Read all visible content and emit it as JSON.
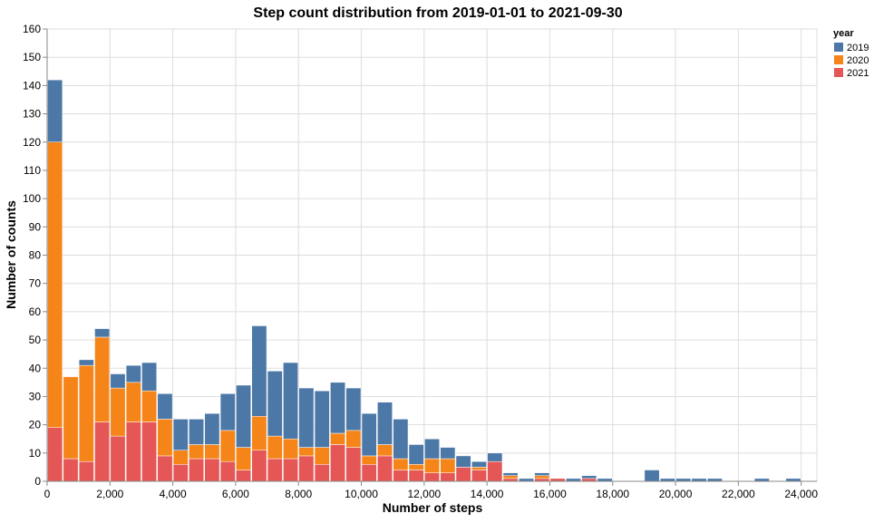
{
  "chart_data": {
    "type": "bar",
    "stacked": true,
    "title": "Step count distribution from 2019-01-01 to 2021-09-30",
    "xlabel": "Number of steps",
    "ylabel": "Number of counts",
    "xlim": [
      0,
      24500
    ],
    "ylim": [
      0,
      160
    ],
    "bin_width": 500,
    "x": [
      0,
      500,
      1000,
      1500,
      2000,
      2500,
      3000,
      3500,
      4000,
      4500,
      5000,
      5500,
      6000,
      6500,
      7000,
      7500,
      8000,
      8500,
      9000,
      9500,
      10000,
      10500,
      11000,
      11500,
      12000,
      12500,
      13000,
      13500,
      14000,
      14500,
      15000,
      15500,
      16000,
      16500,
      17000,
      17500,
      18000,
      18500,
      19000,
      19500,
      20000,
      20500,
      21000,
      21500,
      22000,
      22500,
      23000,
      23500,
      24000
    ],
    "x_ticks": [
      0,
      2000,
      4000,
      6000,
      8000,
      10000,
      12000,
      14000,
      16000,
      18000,
      20000,
      22000,
      24000
    ],
    "x_tick_labels": [
      "0",
      "2,000",
      "4,000",
      "6,000",
      "8,000",
      "10,000",
      "12,000",
      "14,000",
      "16,000",
      "18,000",
      "20,000",
      "22,000",
      "24,000"
    ],
    "y_ticks": [
      0,
      10,
      20,
      30,
      40,
      50,
      60,
      70,
      80,
      90,
      100,
      110,
      120,
      130,
      140,
      150,
      160
    ],
    "y_tick_labels": [
      "0",
      "10",
      "20",
      "30",
      "40",
      "50",
      "60",
      "70",
      "80",
      "90",
      "100",
      "110",
      "120",
      "130",
      "140",
      "150",
      "160"
    ],
    "grid": true,
    "legend_title": "year",
    "legend_position": "right",
    "series": [
      {
        "name": "2021",
        "color": "#e45756",
        "values": [
          19,
          8,
          7,
          21,
          16,
          21,
          21,
          9,
          6,
          8,
          8,
          7,
          4,
          11,
          8,
          8,
          9,
          6,
          13,
          12,
          6,
          9,
          4,
          4,
          3,
          3,
          5,
          4,
          7,
          1,
          0,
          1,
          1,
          0,
          1,
          0,
          0,
          0,
          0,
          0,
          0,
          0,
          0,
          0,
          0,
          0,
          0,
          0,
          0
        ]
      },
      {
        "name": "2020",
        "color": "#f58518",
        "values": [
          101,
          29,
          34,
          30,
          17,
          14,
          11,
          13,
          5,
          5,
          5,
          11,
          8,
          12,
          8,
          7,
          3,
          6,
          4,
          6,
          3,
          4,
          4,
          2,
          5,
          5,
          0,
          1,
          0,
          1,
          0,
          1,
          0,
          0,
          0,
          0,
          0,
          0,
          0,
          0,
          0,
          0,
          0,
          0,
          0,
          0,
          0,
          0,
          0
        ]
      },
      {
        "name": "2019",
        "color": "#4c78a8",
        "values": [
          22,
          0,
          2,
          3,
          5,
          6,
          10,
          9,
          11,
          9,
          11,
          13,
          22,
          32,
          23,
          27,
          21,
          20,
          18,
          15,
          15,
          15,
          14,
          7,
          7,
          4,
          4,
          2,
          3,
          1,
          1,
          1,
          0,
          1,
          1,
          1,
          0,
          0,
          4,
          1,
          1,
          1,
          1,
          0,
          0,
          1,
          0,
          1,
          0
        ]
      }
    ]
  }
}
